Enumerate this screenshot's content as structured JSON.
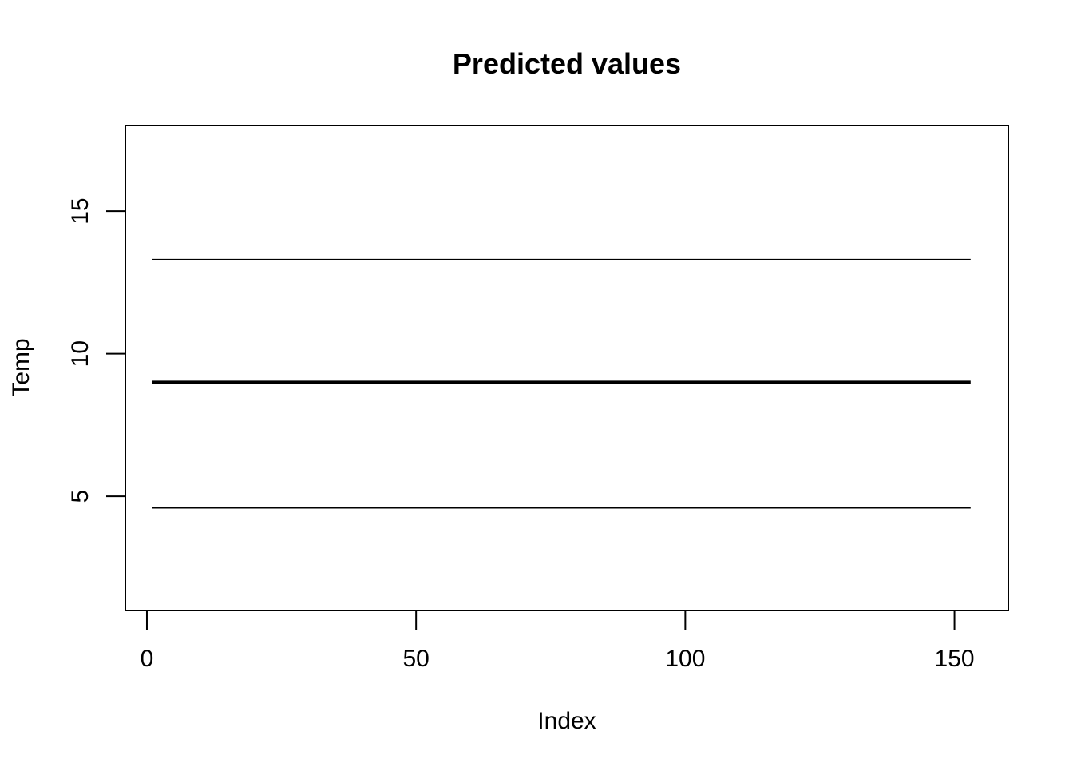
{
  "chart_data": {
    "type": "line",
    "title": "Predicted values",
    "xlabel": "Index",
    "ylabel": "Temp",
    "xlim": [
      -4,
      160
    ],
    "ylim": [
      1,
      18
    ],
    "x_ticks": [
      0,
      50,
      100,
      150
    ],
    "y_ticks": [
      5,
      10,
      15
    ],
    "x_range": [
      1,
      153
    ],
    "grid": false,
    "series": [
      {
        "values": [
          13.3,
          13.3
        ],
        "x": [
          1,
          153
        ],
        "line_width": "thin",
        "color": "#000000"
      },
      {
        "values": [
          9.0,
          9.0
        ],
        "x": [
          1,
          153
        ],
        "line_width": "thick",
        "color": "#000000"
      },
      {
        "values": [
          4.6,
          4.6
        ],
        "x": [
          1,
          153
        ],
        "line_width": "thin",
        "color": "#000000"
      }
    ]
  }
}
